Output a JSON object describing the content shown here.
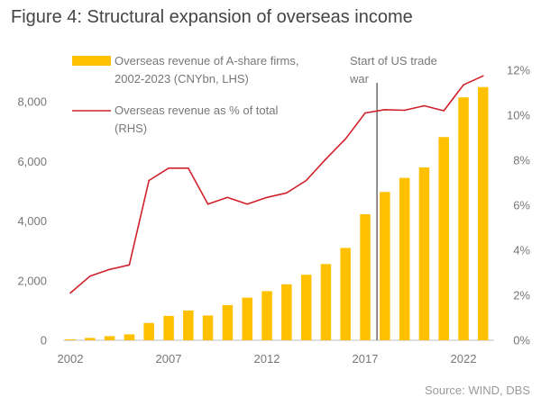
{
  "title": "Figure 4: Structural expansion of overseas income",
  "source": "Source: WIND, DBS",
  "colors": {
    "bars": "#FFC000",
    "line": "#D0202A",
    "marker_line": "#555555",
    "axis": "#bfbfbf",
    "text": "#777777"
  },
  "chart_data": {
    "type": "bar",
    "x": [
      2002,
      2003,
      2004,
      2005,
      2006,
      2007,
      2008,
      2009,
      2010,
      2011,
      2012,
      2013,
      2014,
      2015,
      2016,
      2017,
      2018,
      2019,
      2020,
      2021,
      2022,
      2023
    ],
    "series": [
      {
        "name_lines": [
          "Overseas revenue of A-share firms,",
          "2002-2023 (CNYbn, LHS)"
        ],
        "type": "bar",
        "axis": "left",
        "values": [
          30,
          80,
          140,
          200,
          580,
          820,
          1000,
          830,
          1180,
          1430,
          1650,
          1880,
          2200,
          2560,
          3100,
          4230,
          4980,
          5450,
          5800,
          6820,
          8150,
          8500
        ]
      },
      {
        "name_lines": [
          "Overseas revenue as % of total",
          "(RHS)"
        ],
        "type": "line",
        "axis": "right",
        "values": [
          2.1,
          2.85,
          3.15,
          3.35,
          7.1,
          7.65,
          7.65,
          6.05,
          6.35,
          6.05,
          6.35,
          6.55,
          7.1,
          8.05,
          8.95,
          10.1,
          10.25,
          10.22,
          10.42,
          10.2,
          11.35,
          11.75
        ]
      }
    ],
    "left_axis": {
      "min": 0,
      "max": 9000,
      "ticks": [
        0,
        2000,
        4000,
        6000,
        8000
      ],
      "tick_labels": [
        "0",
        "2,000",
        "4,000",
        "6,000",
        "8,000"
      ]
    },
    "right_axis": {
      "min": 0,
      "max": 12,
      "ticks": [
        0,
        2,
        4,
        6,
        8,
        10,
        12
      ],
      "tick_labels": [
        "0%",
        "2%",
        "4%",
        "6%",
        "8%",
        "10%",
        "12%"
      ]
    },
    "x_axis": {
      "ticks": [
        2002,
        2007,
        2012,
        2017,
        2022
      ],
      "tick_labels": [
        "2002",
        "2007",
        "2012",
        "2017",
        "2022"
      ]
    },
    "annotation": {
      "x": 2017.6,
      "lines": [
        "Start of US trade",
        "war"
      ]
    },
    "grid": false,
    "legend_position": "top-left"
  }
}
